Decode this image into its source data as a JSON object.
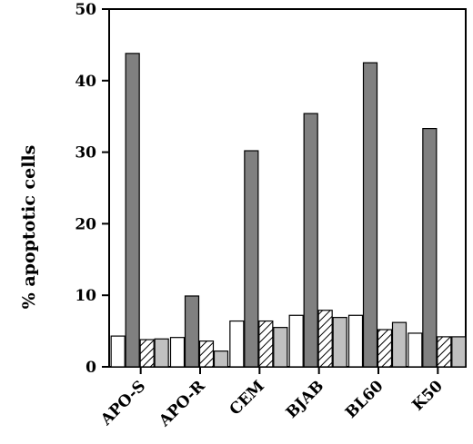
{
  "chart_data": {
    "type": "bar",
    "ylabel": "% apoptotic cells",
    "xlabel": "",
    "ylim": [
      0,
      50
    ],
    "yticks": [
      0,
      10,
      20,
      30,
      40,
      50
    ],
    "grid": false,
    "legend": "none",
    "categories": [
      "APO-S",
      "APO-R",
      "CEM",
      "BJAB",
      "BL60",
      "K50"
    ],
    "series": [
      {
        "fill": "white",
        "color": "#ffffff",
        "values": [
          4.3,
          4.1,
          6.4,
          7.2,
          7.2,
          4.7
        ]
      },
      {
        "fill": "dark-gray",
        "color": "#808080",
        "values": [
          43.8,
          9.9,
          30.2,
          35.4,
          42.5,
          33.3
        ]
      },
      {
        "fill": "hatched",
        "color": "#ffffff",
        "values": [
          3.8,
          3.6,
          6.4,
          7.9,
          5.2,
          4.2
        ]
      },
      {
        "fill": "light-gray",
        "color": "#c0c0c0",
        "values": [
          3.9,
          2.2,
          5.5,
          6.9,
          6.2,
          4.2
        ]
      }
    ]
  }
}
